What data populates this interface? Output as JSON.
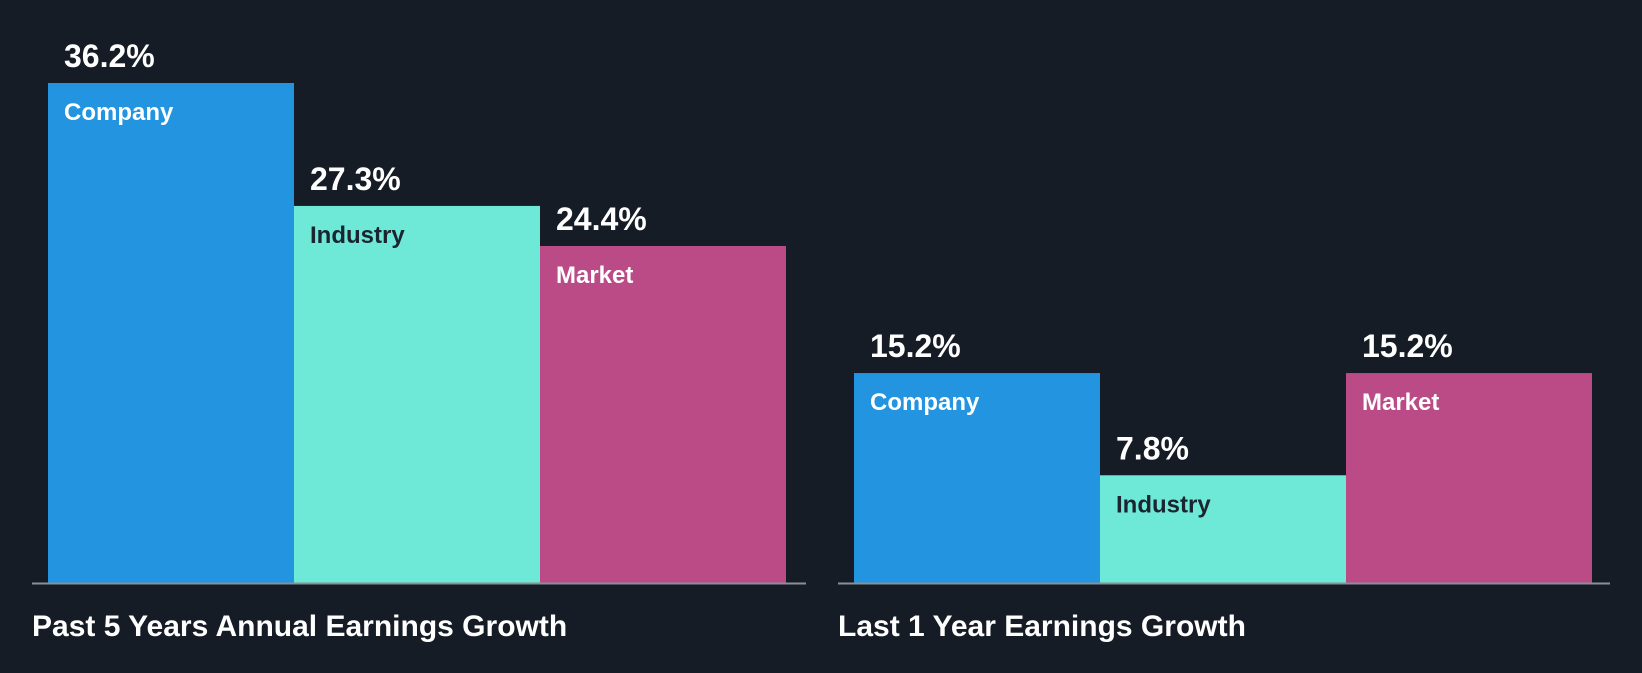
{
  "chart_data": [
    {
      "type": "bar",
      "title": "Past 5 Years Annual Earnings Growth",
      "categories": [
        "Company",
        "Industry",
        "Market"
      ],
      "values": [
        36.2,
        27.3,
        24.4
      ],
      "value_labels": [
        "36.2%",
        "27.3%",
        "24.4%"
      ],
      "unit": "%",
      "ylim": [
        0,
        36.2
      ],
      "colors": [
        "#2394df",
        "#6ee8d7",
        "#bb4b87"
      ],
      "grid": false,
      "legend": "none"
    },
    {
      "type": "bar",
      "title": "Last 1 Year Earnings Growth",
      "categories": [
        "Company",
        "Industry",
        "Market"
      ],
      "values": [
        15.2,
        7.8,
        15.2
      ],
      "value_labels": [
        "15.2%",
        "7.8%",
        "15.2%"
      ],
      "unit": "%",
      "ylim": [
        0,
        36.2
      ],
      "colors": [
        "#2394df",
        "#6ee8d7",
        "#bb4b87"
      ],
      "grid": false,
      "legend": "none"
    }
  ],
  "theme": {
    "background": "#161c25",
    "axis_color": "#8a8f98",
    "text_color": "#ffffff",
    "dark_text_color": "#1b2530"
  }
}
